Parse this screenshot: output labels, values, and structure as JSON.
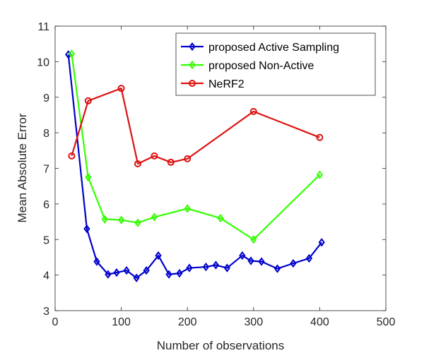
{
  "chart_data": {
    "type": "line",
    "title": "",
    "xlabel": "Number of observations",
    "ylabel": "Mean Absolute Error",
    "xlim": [
      0,
      500
    ],
    "ylim": [
      3,
      11
    ],
    "xticks": [
      0,
      100,
      200,
      300,
      400,
      500
    ],
    "yticks": [
      3,
      4,
      5,
      6,
      7,
      8,
      9,
      10,
      11
    ],
    "grid": false,
    "legend_position": "top-right",
    "series": [
      {
        "name": "proposed Active Sampling",
        "color": "#0000CC",
        "marker": "diamond",
        "x": [
          20,
          48,
          63,
          80,
          93,
          108,
          123,
          138,
          156,
          172,
          188,
          203,
          228,
          243,
          260,
          283,
          296,
          312,
          336,
          360,
          384,
          403
        ],
        "y": [
          10.2,
          5.3,
          4.38,
          4.02,
          4.07,
          4.13,
          3.92,
          4.13,
          4.55,
          4.02,
          4.05,
          4.2,
          4.23,
          4.28,
          4.2,
          4.55,
          4.4,
          4.38,
          4.18,
          4.33,
          4.47,
          4.92
        ]
      },
      {
        "name": "proposed Non-Active",
        "color": "#33FF00",
        "marker": "diamond",
        "x": [
          25,
          50,
          75,
          100,
          125,
          150,
          200,
          250,
          300,
          400
        ],
        "y": [
          10.22,
          6.75,
          5.57,
          5.55,
          5.47,
          5.63,
          5.87,
          5.6,
          5.0,
          6.82
        ]
      },
      {
        "name": "NeRF2",
        "color": "#DD1111",
        "marker": "circle",
        "x": [
          25,
          50,
          100,
          125,
          150,
          175,
          200,
          300,
          400
        ],
        "y": [
          7.35,
          8.9,
          9.25,
          7.13,
          7.35,
          7.17,
          7.27,
          8.6,
          7.87
        ]
      }
    ]
  }
}
